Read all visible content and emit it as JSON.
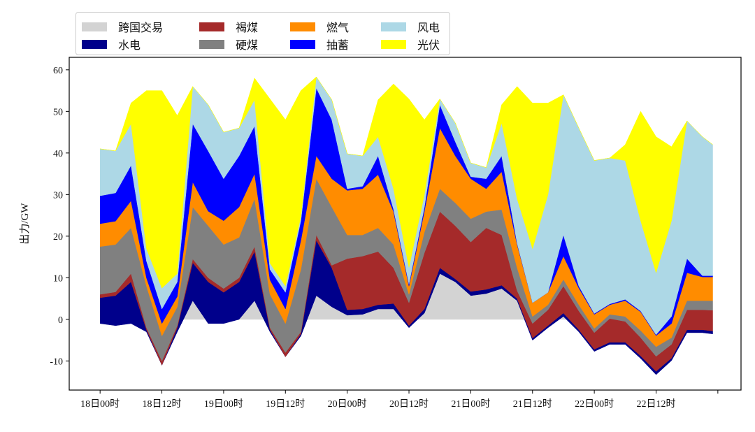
{
  "chart_data": {
    "type": "area",
    "stacked": true,
    "title": "",
    "xlabel": "",
    "ylabel": "出力/GW",
    "x_unit": "hours since 18日00时",
    "xlim": [
      -6,
      124.5
    ],
    "ylim": [
      -17,
      63
    ],
    "grid": false,
    "legend_placement": "top-left, above axes",
    "yticks": [
      -10,
      0,
      10,
      20,
      30,
      40,
      50,
      60
    ],
    "xticks": [
      {
        "value": 0,
        "label": "18日00时"
      },
      {
        "value": 12,
        "label": "18日12时"
      },
      {
        "value": 24,
        "label": "19日00时"
      },
      {
        "value": 36,
        "label": "19日12时"
      },
      {
        "value": 48,
        "label": "20日00时"
      },
      {
        "value": 60,
        "label": "20日12时"
      },
      {
        "value": 72,
        "label": "21日00时"
      },
      {
        "value": 84,
        "label": "21日12时"
      },
      {
        "value": 96,
        "label": "22日00时"
      },
      {
        "value": 108,
        "label": "22日12时"
      },
      {
        "value": 120,
        "label": ""
      }
    ],
    "x": [
      0,
      3,
      6,
      9,
      12,
      15,
      18,
      21,
      24,
      27,
      30,
      33,
      36,
      39,
      42,
      45,
      48,
      51,
      54,
      57,
      60,
      63,
      66,
      69,
      72,
      75,
      78,
      81,
      84,
      87,
      90,
      93,
      96,
      99,
      102,
      105,
      108,
      111,
      114,
      117,
      119
    ],
    "series": [
      {
        "name": "跨国交易",
        "color": "#d3d3d3",
        "values": [
          -1,
          -1.5,
          -1,
          -3,
          -11,
          -3,
          4.5,
          -1,
          -1,
          0,
          4.5,
          -3,
          -9,
          -4,
          5.7,
          3,
          1,
          1.2,
          2.5,
          2.5,
          -2,
          1.5,
          11,
          9,
          5.7,
          6.2,
          7.4,
          4.5,
          -5,
          -2,
          0.7,
          -3,
          -7.7,
          -6,
          -6,
          -9.4,
          -13.3,
          -9.9,
          -3.2,
          -3.2,
          -3.5
        ]
      },
      {
        "name": "水电",
        "color": "#00008b",
        "values": [
          6.2,
          7.2,
          10,
          0.5,
          0,
          1,
          9.1,
          10,
          7.5,
          9,
          11.8,
          0.5,
          0,
          0.5,
          13.3,
          9.4,
          1.3,
          1.3,
          1,
          1.3,
          0.5,
          1,
          1.4,
          0.7,
          1,
          1,
          0.8,
          0.5,
          0.5,
          0.5,
          0.8,
          0.5,
          0.5,
          0.5,
          0.5,
          0.6,
          0.8,
          0.6,
          0.7,
          0.7,
          0.7
        ]
      },
      {
        "name": "褐煤",
        "color": "#a52a2a",
        "values": [
          0.8,
          0.9,
          2,
          0.5,
          1,
          0.5,
          0.9,
          1,
          0.9,
          1,
          1.2,
          0.5,
          1,
          0.5,
          1.3,
          0.6,
          12.3,
          12.7,
          12.8,
          8.6,
          5.5,
          13.5,
          13.5,
          12.8,
          11.9,
          14.8,
          12.1,
          1.9,
          3.5,
          3.8,
          6.5,
          4.5,
          4,
          5.7,
          5,
          4.4,
          3.6,
          3.3,
          4.8,
          4.8,
          5
        ]
      },
      {
        "name": "硬煤",
        "color": "#808080",
        "values": [
          11.5,
          11.4,
          11,
          10,
          6,
          4.5,
          12.5,
          12.5,
          10.6,
          9.7,
          11.5,
          8,
          7,
          15,
          13.5,
          14,
          5.7,
          5.1,
          5.7,
          5.6,
          2,
          5,
          5.5,
          5.5,
          5.6,
          3.9,
          6.1,
          5.5,
          1.7,
          1.2,
          1.6,
          1.5,
          1,
          1,
          1.2,
          1.7,
          2.3,
          1.6,
          2.2,
          2.2,
          2.3
        ]
      },
      {
        "name": "燃气",
        "color": "#ff8c00",
        "values": [
          5.5,
          5.6,
          6.5,
          2,
          3,
          2.5,
          6,
          3.5,
          5.7,
          7.3,
          6,
          3.5,
          3.5,
          7,
          5.5,
          6.8,
          10.7,
          11.1,
          12.8,
          7.9,
          2,
          5,
          14.6,
          11.3,
          9.6,
          5.5,
          9.1,
          5.6,
          3.3,
          3,
          5.6,
          4,
          3.4,
          2.3,
          3.8,
          4.5,
          2.7,
          3.4,
          6.7,
          5.7,
          5.7
        ]
      },
      {
        "name": "抽蓄",
        "color": "#0000ff",
        "values": [
          6.7,
          6.8,
          8.5,
          4,
          3.5,
          3.5,
          14,
          14.5,
          10.1,
          12.3,
          11.5,
          2.5,
          4,
          4.7,
          16.3,
          14.2,
          0.4,
          0.6,
          4.5,
          0.6,
          0.5,
          1,
          5.6,
          3.4,
          0.5,
          2.4,
          3.8,
          0.3,
          0,
          0,
          5.1,
          0.5,
          0.2,
          0.2,
          0.3,
          0.2,
          0.2,
          1.7,
          3.4,
          0.3,
          0.3
        ]
      },
      {
        "name": "风电",
        "color": "#add8e6",
        "values": [
          11.3,
          10.1,
          10,
          3,
          5,
          2,
          9,
          11.1,
          11.2,
          6.7,
          6.3,
          1.5,
          1.5,
          1,
          2.7,
          4.8,
          8.4,
          7.3,
          4.6,
          4.9,
          4,
          3,
          1.4,
          4.5,
          3.3,
          2.7,
          7.9,
          10.7,
          13,
          23.5,
          33.7,
          38,
          36.8,
          35.1,
          33.4,
          21.7,
          14.9,
          23,
          33.1,
          33.4,
          31.5
        ]
      },
      {
        "name": "光伏",
        "color": "#ffff00",
        "values": [
          0,
          0,
          5,
          38,
          47.5,
          38,
          0,
          0,
          0,
          0,
          5.2,
          39.5,
          40,
          30.3,
          0,
          0,
          0,
          0,
          8.9,
          25.2,
          40.5,
          18,
          0,
          0,
          0,
          0,
          4.4,
          27,
          35,
          22,
          0,
          0,
          0,
          0,
          3.8,
          26.3,
          32.7,
          17.8,
          0,
          0,
          0
        ]
      }
    ],
    "legend_order": [
      "跨国交易",
      "水电",
      "褐煤",
      "硬煤",
      "燃气",
      "抽蓄",
      "风电",
      "光伏"
    ]
  }
}
